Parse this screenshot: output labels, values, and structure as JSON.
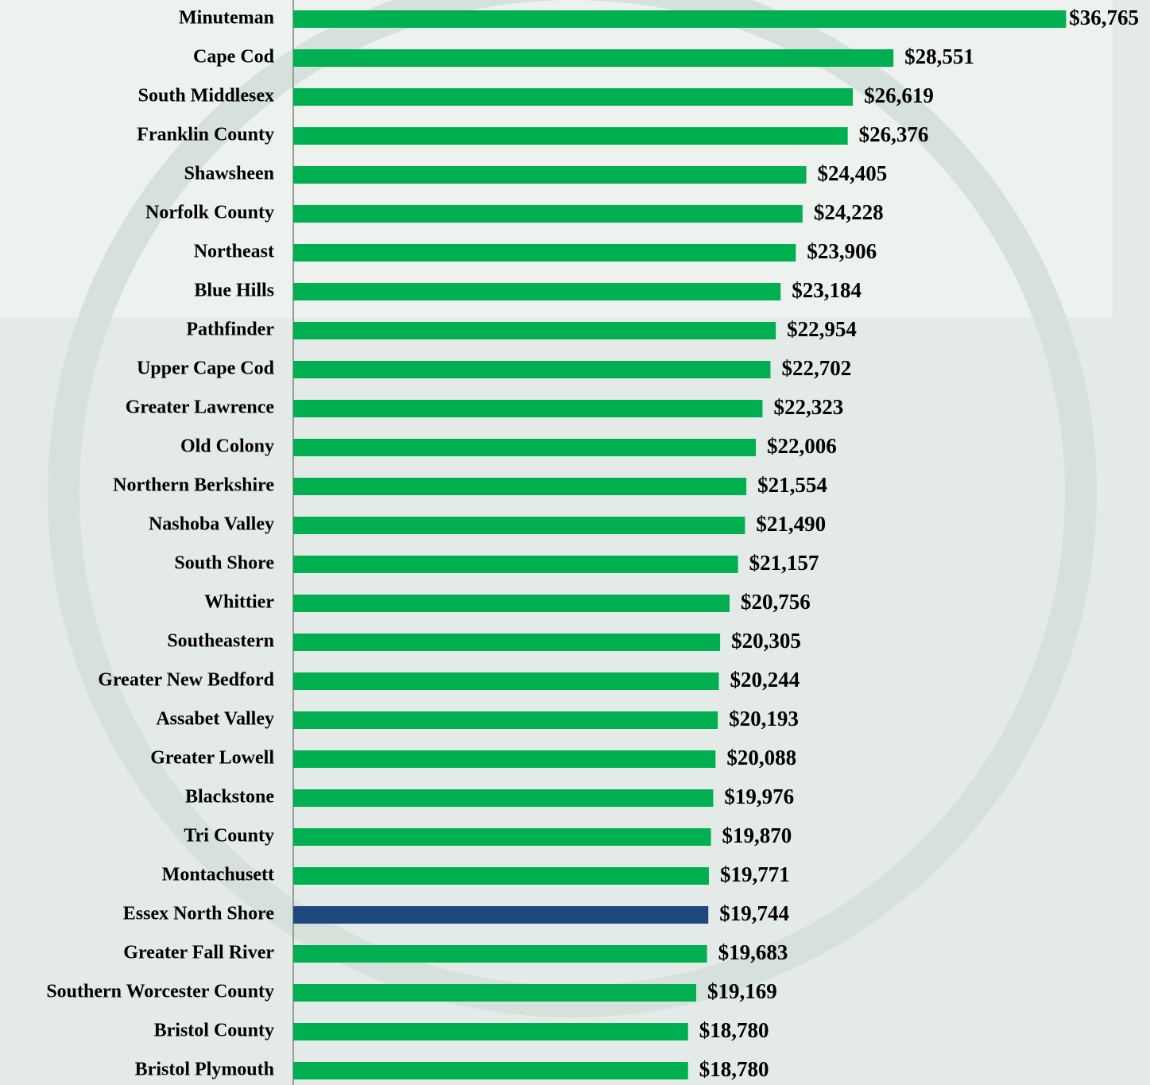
{
  "chart_data": {
    "type": "hbar",
    "categories": [
      "Minuteman",
      "Cape Cod",
      "South Middlesex",
      "Franklin County",
      "Shawsheen",
      "Norfolk County",
      "Northeast",
      "Blue Hills",
      "Pathfinder",
      "Upper Cape Cod",
      "Greater Lawrence",
      "Old Colony",
      "Northern Berkshire",
      "Nashoba Valley",
      "South Shore",
      "Whittier",
      "Southeastern",
      "Greater New Bedford",
      "Assabet Valley",
      "Greater Lowell",
      "Blackstone",
      "Tri County",
      "Montachusett",
      "Essex North Shore",
      "Greater Fall River",
      "Southern Worcester County",
      "Bristol County",
      "Bristol Plymouth"
    ],
    "values": [
      36765,
      28551,
      26619,
      26376,
      24405,
      24228,
      23906,
      23184,
      22954,
      22702,
      22323,
      22006,
      21554,
      21490,
      21157,
      20756,
      20305,
      20244,
      20193,
      20088,
      19976,
      19870,
      19771,
      19744,
      19683,
      19169,
      18780,
      18780
    ],
    "value_labels": [
      "$36,765",
      "$28,551",
      "$26,619",
      "$26,376",
      "$24,405",
      "$24,228",
      "$23,906",
      "$23,184",
      "$22,954",
      "$22,702",
      "$22,323",
      "$22,006",
      "$21,554",
      "$21,490",
      "$21,157",
      "$20,756",
      "$20,305",
      "$20,244",
      "$20,193",
      "$20,088",
      "$19,976",
      "$19,870",
      "$19,771",
      "$19,744",
      "$19,683",
      "$19,169",
      "$18,780",
      "$18,780"
    ],
    "colors": [
      "#00b050",
      "#00b050",
      "#00b050",
      "#00b050",
      "#00b050",
      "#00b050",
      "#00b050",
      "#00b050",
      "#00b050",
      "#00b050",
      "#00b050",
      "#00b050",
      "#00b050",
      "#00b050",
      "#00b050",
      "#00b050",
      "#00b050",
      "#00b050",
      "#00b050",
      "#00b050",
      "#00b050",
      "#00b050",
      "#00b050",
      "#1f497d",
      "#00b050",
      "#00b050",
      "#00b050",
      "#00b050"
    ],
    "xlim": [
      0,
      40000
    ]
  }
}
